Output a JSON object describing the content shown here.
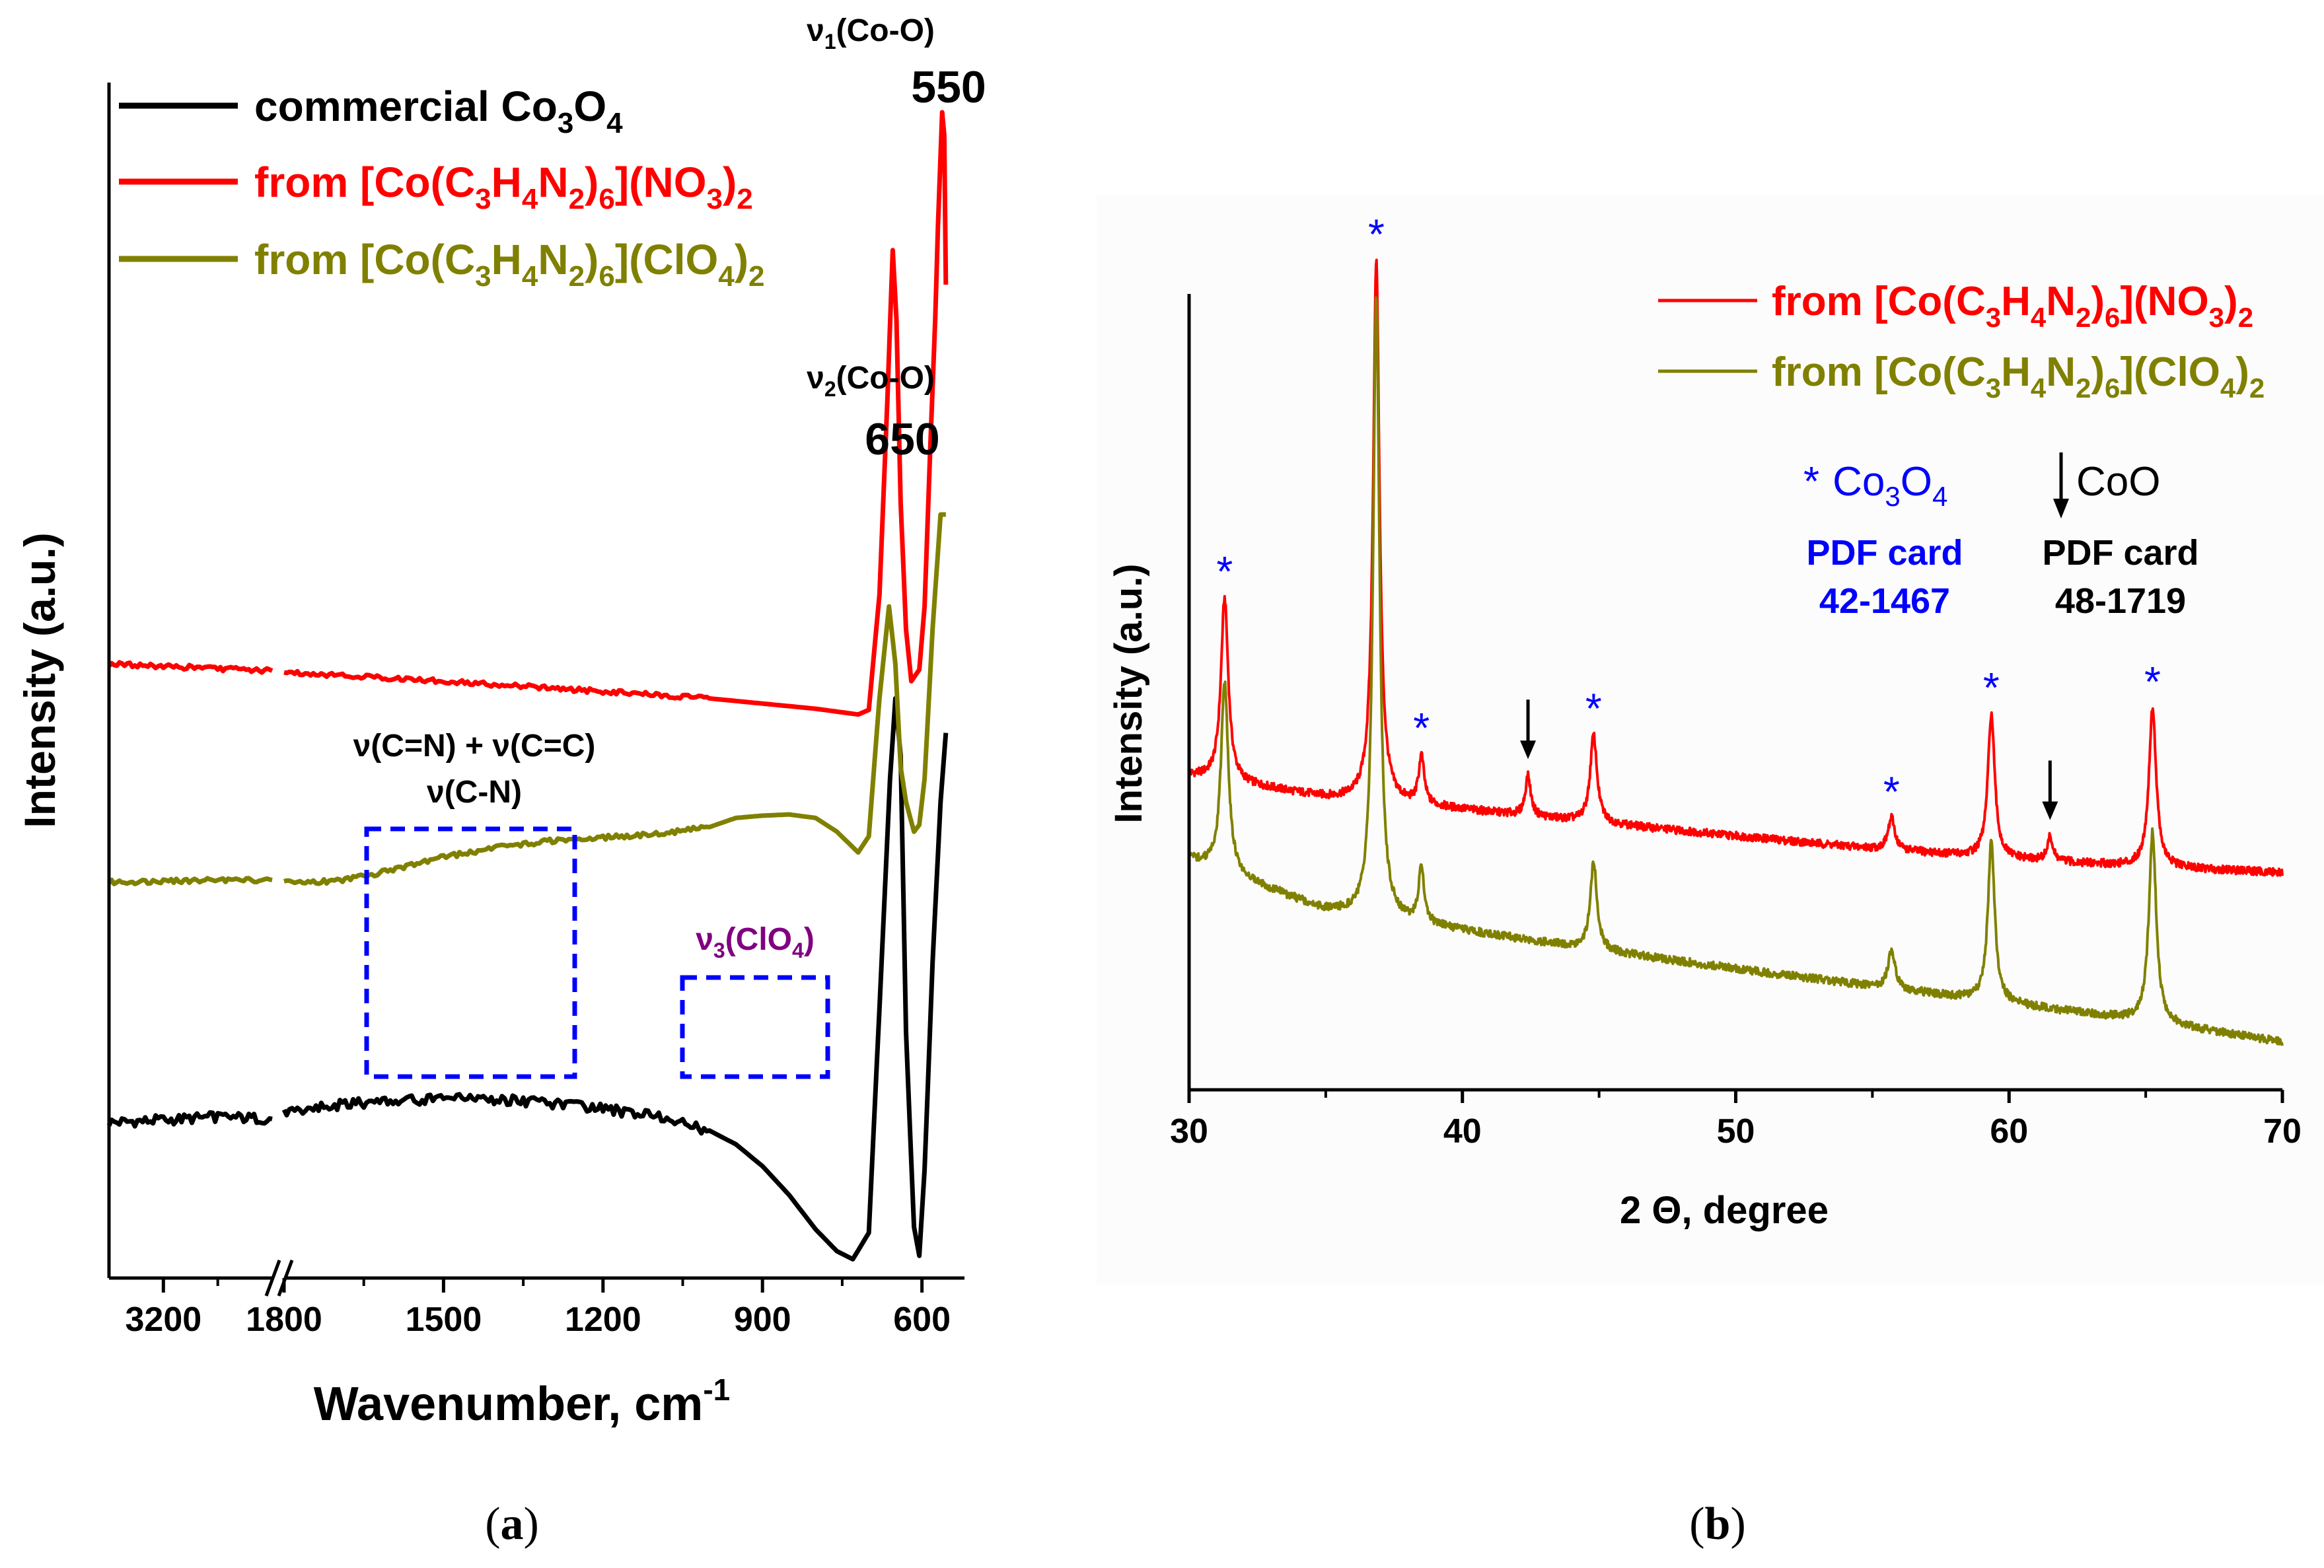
{
  "chart_data": [
    {
      "panel_label": "a",
      "type": "line",
      "title": "",
      "xlabel": "Wavenumber, cm",
      "xlabel_superscript": "-1",
      "ylabel": "Intensity (a.u.)",
      "x_broken_axis": true,
      "x_segments": [
        {
          "from": 3400,
          "to": 2800,
          "ticks": [
            3200
          ]
        },
        {
          "from": 1800,
          "to": 520,
          "ticks": [
            1800,
            1500,
            1200,
            900,
            600
          ]
        }
      ],
      "xtick_labels": [
        "3200",
        "1800",
        "1500",
        "1200",
        "900",
        "600"
      ],
      "ylim": [
        0,
        100
      ],
      "y_tick_labels_shown": false,
      "legend_position": "top-left",
      "series": [
        {
          "name": "commercial Co3O4",
          "legend_label": {
            "pre": "commercial Co",
            "sub1": "3",
            "mid": "O",
            "sub2": "4"
          },
          "color": "#000000",
          "points": [
            [
              3400,
              12.1
            ],
            [
              3200,
              12.3
            ],
            [
              3000,
              12.6
            ],
            [
              2800,
              12.4
            ],
            [
              1800,
              13.0
            ],
            [
              1700,
              13.6
            ],
            [
              1600,
              14.0
            ],
            [
              1500,
              14.2
            ],
            [
              1400,
              14.1
            ],
            [
              1300,
              13.8
            ],
            [
              1200,
              13.3
            ],
            [
              1100,
              12.6
            ],
            [
              1000,
              11.4
            ],
            [
              950,
              10.2
            ],
            [
              900,
              8.3
            ],
            [
              850,
              5.8
            ],
            [
              800,
              2.8
            ],
            [
              760,
              0.9
            ],
            [
              730,
              0.2
            ],
            [
              700,
              2.5
            ],
            [
              680,
              22
            ],
            [
              660,
              42
            ],
            [
              650,
              49
            ],
            [
              640,
              44
            ],
            [
              630,
              20
            ],
            [
              615,
              3
            ],
            [
              605,
              0.5
            ],
            [
              595,
              8
            ],
            [
              580,
              26
            ],
            [
              565,
              40
            ],
            [
              555,
              46
            ]
          ]
        },
        {
          "name": "from [Co(C3H4N2)6](ClO4)2",
          "legend_label": {
            "l1": "from [Co(C",
            "s1": "3",
            "l2": "H",
            "s2": "4",
            "l3": "N",
            "s3": "2",
            "l4": ")",
            "s4": "6",
            "l5": "](ClO",
            "s5": "4",
            "l6": ")",
            "s6": "2"
          },
          "color": "#808000",
          "points": [
            [
              3400,
              33.0
            ],
            [
              3200,
              33.1
            ],
            [
              3000,
              33.2
            ],
            [
              2800,
              33.2
            ],
            [
              1800,
              33.0
            ],
            [
              1700,
              33.1
            ],
            [
              1600,
              34.0
            ],
            [
              1500,
              35.2
            ],
            [
              1400,
              36.0
            ],
            [
              1300,
              36.6
            ],
            [
              1200,
              36.9
            ],
            [
              1100,
              37.2
            ],
            [
              1000,
              37.8
            ],
            [
              950,
              38.6
            ],
            [
              900,
              38.8
            ],
            [
              850,
              38.9
            ],
            [
              800,
              38.6
            ],
            [
              760,
              37.4
            ],
            [
              720,
              35.6
            ],
            [
              700,
              37
            ],
            [
              680,
              49
            ],
            [
              662,
              57
            ],
            [
              650,
              52
            ],
            [
              640,
              43
            ],
            [
              630,
              40
            ],
            [
              615,
              37.4
            ],
            [
              605,
              38
            ],
            [
              595,
              42
            ],
            [
              580,
              55
            ],
            [
              565,
              65
            ],
            [
              555,
              65
            ]
          ]
        },
        {
          "name": "from [Co(C3H4N2)6](NO3)2",
          "legend_label": {
            "l1": "from [Co(C",
            "s1": "3",
            "l2": "H",
            "s2": "4",
            "l3": "N",
            "s3": "2",
            "l4": ")",
            "s4": "6",
            "l5": "](NO",
            "s5": "3",
            "l6": ")",
            "s6": "2"
          },
          "color": "#ff0000",
          "points": [
            [
              3400,
              52.0
            ],
            [
              3200,
              51.8
            ],
            [
              3000,
              51.6
            ],
            [
              2800,
              51.4
            ],
            [
              1800,
              51.3
            ],
            [
              1500,
              50.5
            ],
            [
              1200,
              49.6
            ],
            [
              1000,
              49.0
            ],
            [
              800,
              48.1
            ],
            [
              720,
              47.6
            ],
            [
              700,
              48
            ],
            [
              680,
              58
            ],
            [
              665,
              75
            ],
            [
              655,
              88
            ],
            [
              648,
              82
            ],
            [
              640,
              66
            ],
            [
              630,
              55
            ],
            [
              620,
              50.5
            ],
            [
              605,
              51.5
            ],
            [
              595,
              57
            ],
            [
              585,
              70
            ],
            [
              575,
              82
            ],
            [
              570,
              90
            ],
            [
              562,
              100
            ],
            [
              558,
              98
            ],
            [
              555,
              85
            ]
          ]
        }
      ],
      "annotations": [
        {
          "id": "v1",
          "pre": "ν",
          "sub": "1",
          "post": "(Co-O)",
          "value": "550"
        },
        {
          "id": "v2",
          "pre": "ν",
          "sub": "2",
          "post": "(Co-O)",
          "value": "650"
        },
        {
          "id": "cn_line1",
          "text": "ν(C=N) + ν(C=C)"
        },
        {
          "id": "cn_line2",
          "text": "ν(C-N)"
        },
        {
          "id": "clo4",
          "pre": "ν",
          "sub": "3",
          "post": "(ClO",
          "sub2": "4",
          "post2": ")",
          "color": "#800080"
        }
      ],
      "dashed_boxes": [
        {
          "name": "cn-region",
          "x_range": [
            1650,
            1270
          ],
          "color": "#0000ff"
        },
        {
          "name": "clo4-region",
          "x_range": [
            1060,
            790
          ],
          "color": "#0000ff"
        }
      ]
    },
    {
      "panel_label": "b",
      "type": "line",
      "title": "",
      "xlabel": "2 Θ, degree",
      "ylabel": "Intensity (a.u.)",
      "xlim": [
        30,
        70
      ],
      "ylim": [
        0,
        100
      ],
      "xticks": [
        30,
        40,
        50,
        60,
        70
      ],
      "xtick_labels": [
        "30",
        "40",
        "50",
        "60",
        "70"
      ],
      "y_tick_labels_shown": false,
      "legend_position": "top-right",
      "series": [
        {
          "name": "from [Co(C3H4N2)6](NO3)2",
          "legend_label": {
            "l1": "from [Co(C",
            "s1": "3",
            "l2": "H",
            "s2": "4",
            "l3": "N",
            "s3": "2",
            "l4": ")",
            "s4": "6",
            "l5": "](NO",
            "s5": "3",
            "l6": ")",
            "s6": "2"
          },
          "color": "#ff0000",
          "baseline": [
            [
              30,
              39.5
            ],
            [
              35,
              36.7
            ],
            [
              40,
              35.2
            ],
            [
              45,
              33.5
            ],
            [
              50,
              31.9
            ],
            [
              55,
              30.3
            ],
            [
              60,
              29.0
            ],
            [
              65,
              28.0
            ],
            [
              70,
              27.3
            ]
          ],
          "peaks": [
            [
              31.3,
              23,
              0.16
            ],
            [
              36.85,
              68,
              0.14
            ],
            [
              38.5,
              6,
              0.12
            ],
            [
              42.4,
              5,
              0.12
            ],
            [
              44.8,
              11,
              0.15
            ],
            [
              55.7,
              4,
              0.15
            ],
            [
              59.35,
              18,
              0.15
            ],
            [
              61.5,
              3,
              0.12
            ],
            [
              65.25,
              20,
              0.16
            ]
          ]
        },
        {
          "name": "from [Co(C3H4N2)6](ClO4)2",
          "legend_label": {
            "l1": "from [Co(C",
            "s1": "3",
            "l2": "H",
            "s2": "4",
            "l3": "N",
            "s3": "2",
            "l4": ")",
            "s4": "6",
            "l5": "](ClO",
            "s5": "4",
            "l6": ")",
            "s6": "2"
          },
          "color": "#808000",
          "baseline": [
            [
              30,
              29.0
            ],
            [
              35,
              22.5
            ],
            [
              40,
              20.0
            ],
            [
              45,
              17.5
            ],
            [
              50,
              15.2
            ],
            [
              55,
              13.0
            ],
            [
              60,
              10.8
            ],
            [
              65,
              8.6
            ],
            [
              70,
              6.0
            ]
          ],
          "peaks": [
            [
              31.3,
              24,
              0.16
            ],
            [
              36.85,
              78,
              0.14
            ],
            [
              38.5,
              7,
              0.12
            ],
            [
              44.8,
              11,
              0.15
            ],
            [
              55.7,
              5,
              0.15
            ],
            [
              59.35,
              20,
              0.15
            ],
            [
              65.25,
              24,
              0.16
            ]
          ]
        }
      ],
      "co3o4_marker_positions": [
        31.3,
        36.85,
        38.5,
        44.8,
        55.7,
        59.35,
        65.25
      ],
      "coo_marker_positions": [
        42.4,
        61.5
      ],
      "reference_key": {
        "co3o4": {
          "symbol": "*",
          "pre": "Co",
          "sub1": "3",
          "mid": "O",
          "sub2": "4",
          "card_label": "PDF card",
          "card_number": "42-1467",
          "color": "#0000ff"
        },
        "coo": {
          "label": "CoO",
          "card_label": "PDF card",
          "card_number": "48-1719",
          "color": "#000000"
        }
      }
    }
  ]
}
